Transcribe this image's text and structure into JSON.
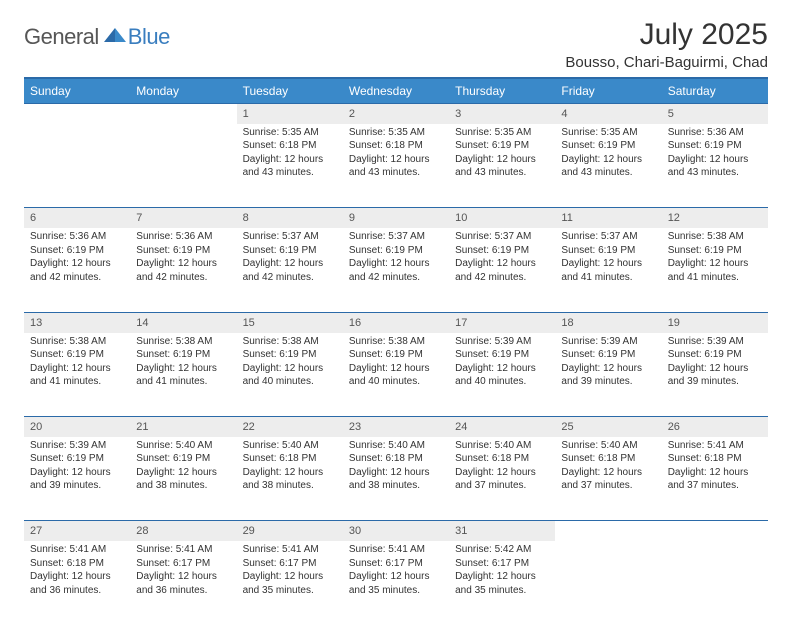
{
  "logo": {
    "text1": "General",
    "text2": "Blue"
  },
  "header": {
    "month": "July 2025",
    "location": "Bousso, Chari-Baguirmi, Chad"
  },
  "colors": {
    "header_bg": "#3a89c9",
    "header_text": "#ffffff",
    "daynum_bg": "#ededed",
    "rule": "#2b6aa8",
    "logo_gray": "#565656",
    "logo_blue": "#3a7ebf",
    "body_text": "#333333",
    "page_bg": "#ffffff"
  },
  "daynames": [
    "Sunday",
    "Monday",
    "Tuesday",
    "Wednesday",
    "Thursday",
    "Friday",
    "Saturday"
  ],
  "weeks": [
    {
      "days": [
        null,
        null,
        {
          "n": "1",
          "sunrise": "Sunrise: 5:35 AM",
          "sunset": "Sunset: 6:18 PM",
          "daylight": "Daylight: 12 hours and 43 minutes."
        },
        {
          "n": "2",
          "sunrise": "Sunrise: 5:35 AM",
          "sunset": "Sunset: 6:18 PM",
          "daylight": "Daylight: 12 hours and 43 minutes."
        },
        {
          "n": "3",
          "sunrise": "Sunrise: 5:35 AM",
          "sunset": "Sunset: 6:19 PM",
          "daylight": "Daylight: 12 hours and 43 minutes."
        },
        {
          "n": "4",
          "sunrise": "Sunrise: 5:35 AM",
          "sunset": "Sunset: 6:19 PM",
          "daylight": "Daylight: 12 hours and 43 minutes."
        },
        {
          "n": "5",
          "sunrise": "Sunrise: 5:36 AM",
          "sunset": "Sunset: 6:19 PM",
          "daylight": "Daylight: 12 hours and 43 minutes."
        }
      ]
    },
    {
      "days": [
        {
          "n": "6",
          "sunrise": "Sunrise: 5:36 AM",
          "sunset": "Sunset: 6:19 PM",
          "daylight": "Daylight: 12 hours and 42 minutes."
        },
        {
          "n": "7",
          "sunrise": "Sunrise: 5:36 AM",
          "sunset": "Sunset: 6:19 PM",
          "daylight": "Daylight: 12 hours and 42 minutes."
        },
        {
          "n": "8",
          "sunrise": "Sunrise: 5:37 AM",
          "sunset": "Sunset: 6:19 PM",
          "daylight": "Daylight: 12 hours and 42 minutes."
        },
        {
          "n": "9",
          "sunrise": "Sunrise: 5:37 AM",
          "sunset": "Sunset: 6:19 PM",
          "daylight": "Daylight: 12 hours and 42 minutes."
        },
        {
          "n": "10",
          "sunrise": "Sunrise: 5:37 AM",
          "sunset": "Sunset: 6:19 PM",
          "daylight": "Daylight: 12 hours and 42 minutes."
        },
        {
          "n": "11",
          "sunrise": "Sunrise: 5:37 AM",
          "sunset": "Sunset: 6:19 PM",
          "daylight": "Daylight: 12 hours and 41 minutes."
        },
        {
          "n": "12",
          "sunrise": "Sunrise: 5:38 AM",
          "sunset": "Sunset: 6:19 PM",
          "daylight": "Daylight: 12 hours and 41 minutes."
        }
      ]
    },
    {
      "days": [
        {
          "n": "13",
          "sunrise": "Sunrise: 5:38 AM",
          "sunset": "Sunset: 6:19 PM",
          "daylight": "Daylight: 12 hours and 41 minutes."
        },
        {
          "n": "14",
          "sunrise": "Sunrise: 5:38 AM",
          "sunset": "Sunset: 6:19 PM",
          "daylight": "Daylight: 12 hours and 41 minutes."
        },
        {
          "n": "15",
          "sunrise": "Sunrise: 5:38 AM",
          "sunset": "Sunset: 6:19 PM",
          "daylight": "Daylight: 12 hours and 40 minutes."
        },
        {
          "n": "16",
          "sunrise": "Sunrise: 5:38 AM",
          "sunset": "Sunset: 6:19 PM",
          "daylight": "Daylight: 12 hours and 40 minutes."
        },
        {
          "n": "17",
          "sunrise": "Sunrise: 5:39 AM",
          "sunset": "Sunset: 6:19 PM",
          "daylight": "Daylight: 12 hours and 40 minutes."
        },
        {
          "n": "18",
          "sunrise": "Sunrise: 5:39 AM",
          "sunset": "Sunset: 6:19 PM",
          "daylight": "Daylight: 12 hours and 39 minutes."
        },
        {
          "n": "19",
          "sunrise": "Sunrise: 5:39 AM",
          "sunset": "Sunset: 6:19 PM",
          "daylight": "Daylight: 12 hours and 39 minutes."
        }
      ]
    },
    {
      "days": [
        {
          "n": "20",
          "sunrise": "Sunrise: 5:39 AM",
          "sunset": "Sunset: 6:19 PM",
          "daylight": "Daylight: 12 hours and 39 minutes."
        },
        {
          "n": "21",
          "sunrise": "Sunrise: 5:40 AM",
          "sunset": "Sunset: 6:19 PM",
          "daylight": "Daylight: 12 hours and 38 minutes."
        },
        {
          "n": "22",
          "sunrise": "Sunrise: 5:40 AM",
          "sunset": "Sunset: 6:18 PM",
          "daylight": "Daylight: 12 hours and 38 minutes."
        },
        {
          "n": "23",
          "sunrise": "Sunrise: 5:40 AM",
          "sunset": "Sunset: 6:18 PM",
          "daylight": "Daylight: 12 hours and 38 minutes."
        },
        {
          "n": "24",
          "sunrise": "Sunrise: 5:40 AM",
          "sunset": "Sunset: 6:18 PM",
          "daylight": "Daylight: 12 hours and 37 minutes."
        },
        {
          "n": "25",
          "sunrise": "Sunrise: 5:40 AM",
          "sunset": "Sunset: 6:18 PM",
          "daylight": "Daylight: 12 hours and 37 minutes."
        },
        {
          "n": "26",
          "sunrise": "Sunrise: 5:41 AM",
          "sunset": "Sunset: 6:18 PM",
          "daylight": "Daylight: 12 hours and 37 minutes."
        }
      ]
    },
    {
      "days": [
        {
          "n": "27",
          "sunrise": "Sunrise: 5:41 AM",
          "sunset": "Sunset: 6:18 PM",
          "daylight": "Daylight: 12 hours and 36 minutes."
        },
        {
          "n": "28",
          "sunrise": "Sunrise: 5:41 AM",
          "sunset": "Sunset: 6:17 PM",
          "daylight": "Daylight: 12 hours and 36 minutes."
        },
        {
          "n": "29",
          "sunrise": "Sunrise: 5:41 AM",
          "sunset": "Sunset: 6:17 PM",
          "daylight": "Daylight: 12 hours and 35 minutes."
        },
        {
          "n": "30",
          "sunrise": "Sunrise: 5:41 AM",
          "sunset": "Sunset: 6:17 PM",
          "daylight": "Daylight: 12 hours and 35 minutes."
        },
        {
          "n": "31",
          "sunrise": "Sunrise: 5:42 AM",
          "sunset": "Sunset: 6:17 PM",
          "daylight": "Daylight: 12 hours and 35 minutes."
        },
        null,
        null
      ]
    }
  ]
}
